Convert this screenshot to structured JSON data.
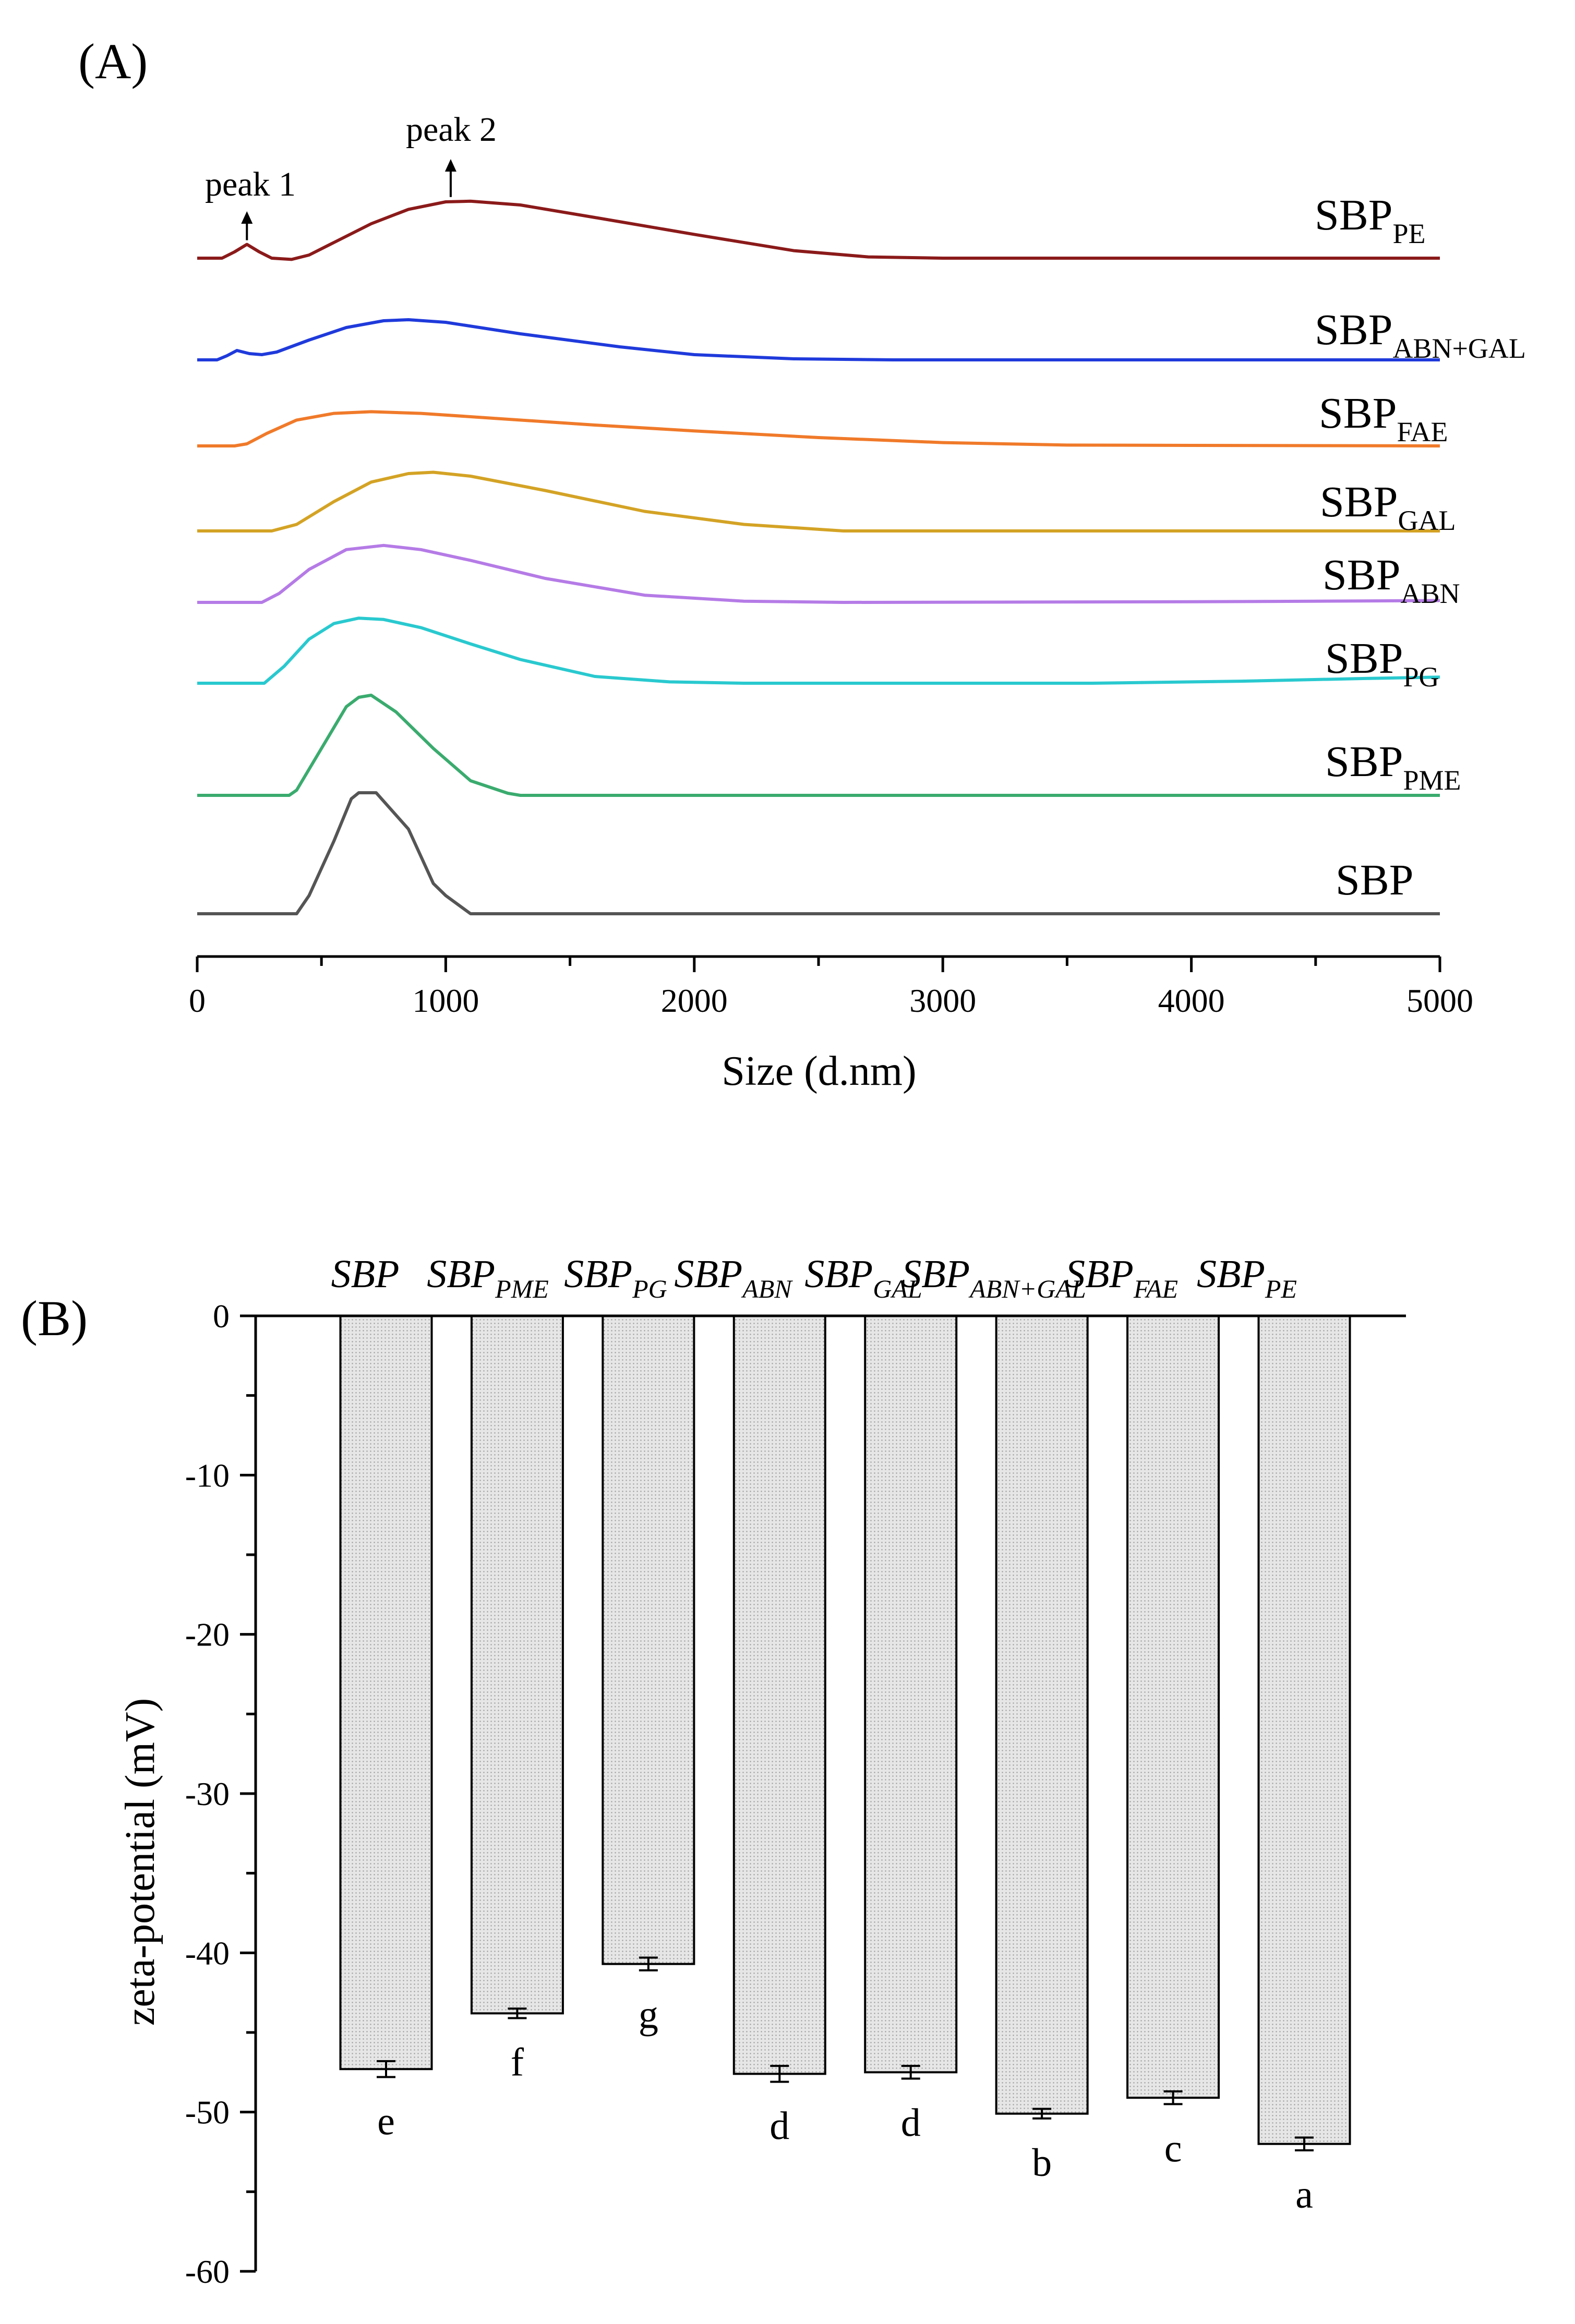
{
  "chart_data": [
    {
      "panel": "(A)",
      "type": "line",
      "xlabel": "Size (d.nm)",
      "ylabel": "",
      "xlim": [
        0,
        5000
      ],
      "x_ticks": [
        "0",
        "1000",
        "2000",
        "3000",
        "4000",
        "5000"
      ],
      "y_axis_shown": false,
      "grid": false,
      "annotations": [
        {
          "text": "peak 1",
          "x": 200,
          "series": "SBP_PE"
        },
        {
          "text": "peak 2",
          "x": 1020,
          "series": "SBP_PE"
        }
      ],
      "series": [
        {
          "name": "SBPPE",
          "base": "SBP",
          "sub": "PE",
          "color": "#8b1a1a",
          "points": [
            [
              0,
              0
            ],
            [
              100,
              0
            ],
            [
              150,
              0.1
            ],
            [
              200,
              0.22
            ],
            [
              250,
              0.1
            ],
            [
              300,
              0
            ],
            [
              380,
              -0.02
            ],
            [
              450,
              0.05
            ],
            [
              550,
              0.25
            ],
            [
              700,
              0.55
            ],
            [
              850,
              0.78
            ],
            [
              1000,
              0.9
            ],
            [
              1100,
              0.91
            ],
            [
              1300,
              0.85
            ],
            [
              1600,
              0.65
            ],
            [
              2000,
              0.38
            ],
            [
              2400,
              0.12
            ],
            [
              2700,
              0.02
            ],
            [
              3000,
              0
            ],
            [
              5000,
              0
            ]
          ]
        },
        {
          "name": "SBPABN+GAL",
          "base": "SBP",
          "sub": "ABN+GAL",
          "color": "#1f3adb",
          "points": [
            [
              0,
              0
            ],
            [
              80,
              0
            ],
            [
              120,
              0.08
            ],
            [
              160,
              0.18
            ],
            [
              210,
              0.12
            ],
            [
              260,
              0.1
            ],
            [
              320,
              0.15
            ],
            [
              450,
              0.38
            ],
            [
              600,
              0.62
            ],
            [
              750,
              0.75
            ],
            [
              850,
              0.77
            ],
            [
              1000,
              0.72
            ],
            [
              1300,
              0.5
            ],
            [
              1700,
              0.25
            ],
            [
              2000,
              0.1
            ],
            [
              2400,
              0.02
            ],
            [
              2800,
              0
            ],
            [
              5000,
              0
            ]
          ]
        },
        {
          "name": "SBPFAE",
          "base": "SBP",
          "sub": "FAE",
          "color": "#f07a2a",
          "points": [
            [
              0,
              0
            ],
            [
              150,
              0
            ],
            [
              200,
              0.05
            ],
            [
              280,
              0.3
            ],
            [
              400,
              0.62
            ],
            [
              550,
              0.78
            ],
            [
              700,
              0.82
            ],
            [
              900,
              0.78
            ],
            [
              1200,
              0.66
            ],
            [
              1600,
              0.5
            ],
            [
              2000,
              0.36
            ],
            [
              2500,
              0.2
            ],
            [
              3000,
              0.08
            ],
            [
              3500,
              0.02
            ],
            [
              5000,
              0
            ]
          ]
        },
        {
          "name": "SBPGAL",
          "base": "SBP",
          "sub": "GAL",
          "color": "#d4a325",
          "points": [
            [
              0,
              0
            ],
            [
              300,
              0
            ],
            [
              400,
              0.1
            ],
            [
              550,
              0.45
            ],
            [
              700,
              0.75
            ],
            [
              850,
              0.88
            ],
            [
              950,
              0.9
            ],
            [
              1100,
              0.84
            ],
            [
              1400,
              0.62
            ],
            [
              1800,
              0.3
            ],
            [
              2200,
              0.1
            ],
            [
              2600,
              0
            ],
            [
              5000,
              0
            ]
          ]
        },
        {
          "name": "SBPABN",
          "base": "SBP",
          "sub": "ABN",
          "color": "#b57be6",
          "points": [
            [
              0,
              0
            ],
            [
              260,
              0
            ],
            [
              330,
              0.15
            ],
            [
              450,
              0.55
            ],
            [
              600,
              0.88
            ],
            [
              750,
              0.95
            ],
            [
              900,
              0.88
            ],
            [
              1100,
              0.7
            ],
            [
              1400,
              0.4
            ],
            [
              1800,
              0.12
            ],
            [
              2200,
              0.02
            ],
            [
              2600,
              0
            ],
            [
              4000,
              0.01
            ],
            [
              4500,
              0.02
            ],
            [
              5000,
              0.03
            ]
          ]
        },
        {
          "name": "SBPPG",
          "base": "SBP",
          "sub": "PG",
          "color": "#29c9cf",
          "points": [
            [
              0,
              0
            ],
            [
              270,
              0
            ],
            [
              350,
              0.25
            ],
            [
              450,
              0.65
            ],
            [
              550,
              0.88
            ],
            [
              650,
              0.96
            ],
            [
              750,
              0.94
            ],
            [
              900,
              0.82
            ],
            [
              1100,
              0.58
            ],
            [
              1300,
              0.35
            ],
            [
              1600,
              0.1
            ],
            [
              1900,
              0.02
            ],
            [
              2200,
              0
            ],
            [
              3600,
              0
            ],
            [
              4200,
              0.03
            ],
            [
              4700,
              0.07
            ],
            [
              5000,
              0.09
            ]
          ]
        },
        {
          "name": "SBPPME",
          "base": "SBP",
          "sub": "PME",
          "color": "#3aab6e",
          "points": [
            [
              0,
              0
            ],
            [
              370,
              0
            ],
            [
              400,
              0.05
            ],
            [
              500,
              0.45
            ],
            [
              600,
              0.85
            ],
            [
              650,
              0.94
            ],
            [
              700,
              0.96
            ],
            [
              800,
              0.8
            ],
            [
              950,
              0.45
            ],
            [
              1100,
              0.14
            ],
            [
              1250,
              0.02
            ],
            [
              1300,
              0
            ],
            [
              5000,
              0
            ]
          ]
        },
        {
          "name": "SBP",
          "base": "SBP",
          "sub": "",
          "color": "#555555",
          "points": [
            [
              0,
              0
            ],
            [
              400,
              0
            ],
            [
              450,
              0.15
            ],
            [
              550,
              0.6
            ],
            [
              620,
              0.95
            ],
            [
              650,
              1
            ],
            [
              720,
              1
            ],
            [
              850,
              0.7
            ],
            [
              950,
              0.25
            ],
            [
              1000,
              0.15
            ],
            [
              1100,
              0
            ],
            [
              5000,
              0
            ]
          ]
        }
      ]
    },
    {
      "panel": "(B)",
      "type": "bar",
      "xlabel": "",
      "ylabel": "zeta-potential (mV)",
      "ylim": [
        -60,
        0
      ],
      "y_ticks": [
        "0",
        "-10",
        "-20",
        "-30",
        "-40",
        "-50",
        "-60"
      ],
      "grid": false,
      "bar_color": "#d9d9d9",
      "categories": [
        {
          "name": "SBP",
          "base": "SBP",
          "sub": ""
        },
        {
          "name": "SBPPME",
          "base": "SBP",
          "sub": "PME"
        },
        {
          "name": "SBPPG",
          "base": "SBP",
          "sub": "PG"
        },
        {
          "name": "SBPABN",
          "base": "SBP",
          "sub": "ABN"
        },
        {
          "name": "SBPGAL",
          "base": "SBP",
          "sub": "GAL"
        },
        {
          "name": "SBPABN+GAL",
          "base": "SBP",
          "sub": "ABN+GAL"
        },
        {
          "name": "SBPFAE",
          "base": "SBP",
          "sub": "FAE"
        },
        {
          "name": "SBPPE",
          "base": "SBP",
          "sub": "PE"
        }
      ],
      "values": [
        -47.3,
        -43.8,
        -40.7,
        -47.6,
        -47.5,
        -50.1,
        -49.1,
        -52.0
      ],
      "errors": [
        0.5,
        0.3,
        0.4,
        0.5,
        0.4,
        0.3,
        0.4,
        0.4
      ],
      "significance": [
        "e",
        "f",
        "g",
        "d",
        "d",
        "b",
        "c",
        "a"
      ]
    }
  ]
}
